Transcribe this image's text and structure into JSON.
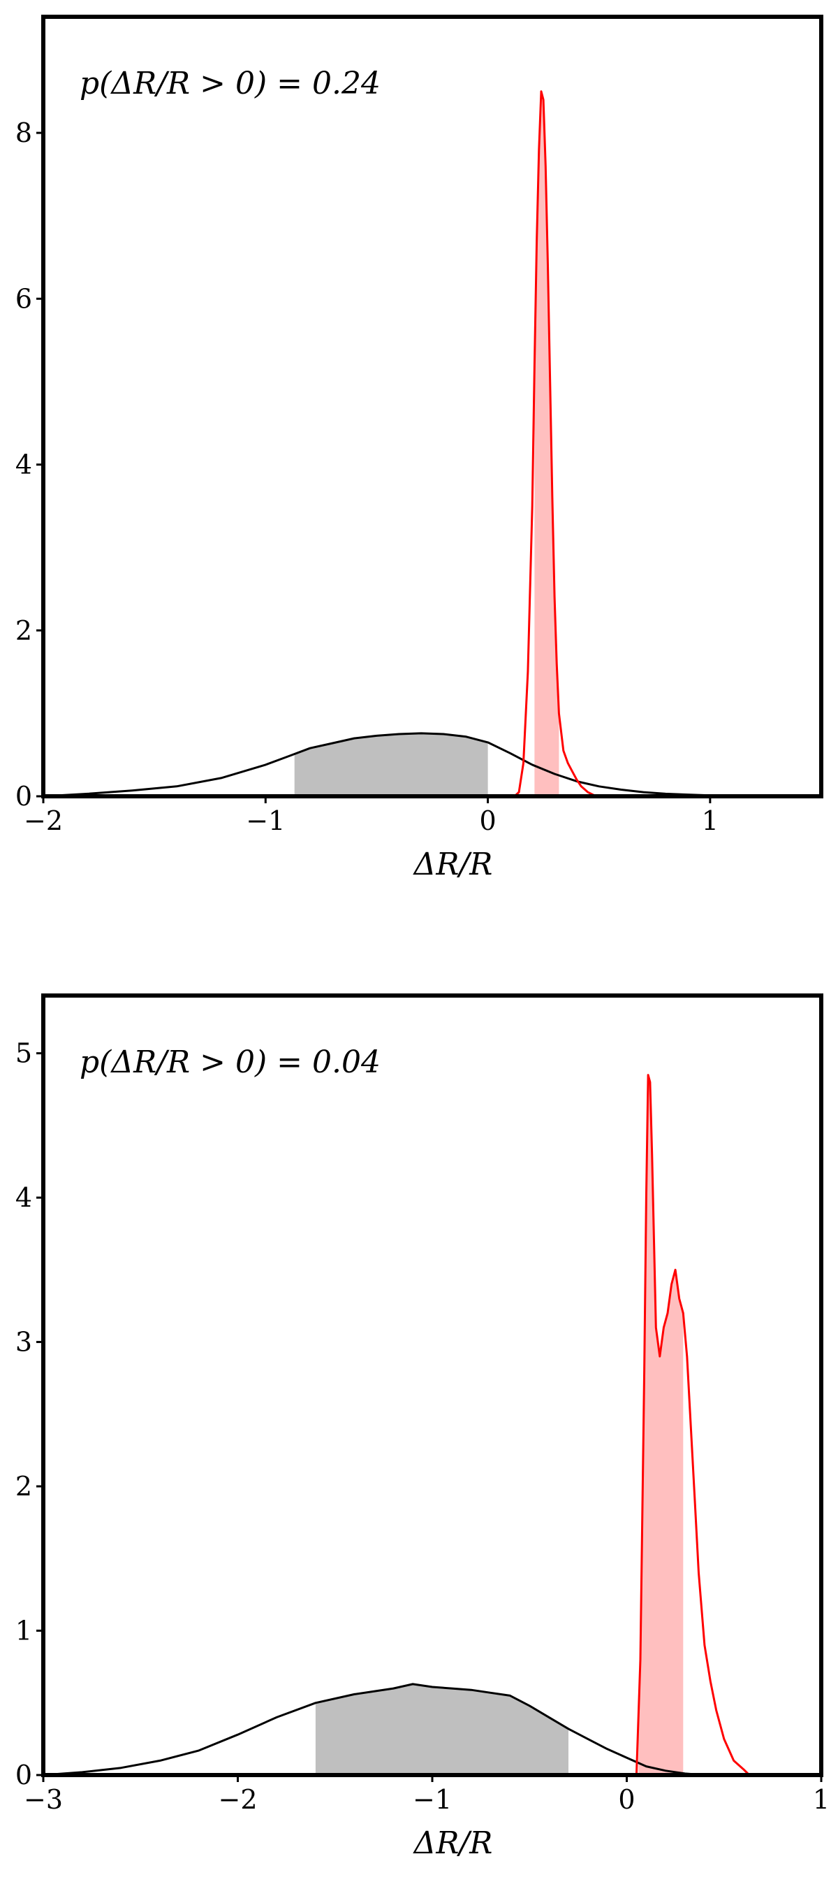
{
  "chart_data": [
    {
      "type": "line",
      "title": "",
      "xlabel": "ΔR/R",
      "ylabel": "",
      "xlim": [
        -2,
        1.5
      ],
      "ylim": [
        0,
        9.4
      ],
      "x_ticks": [
        "−2",
        "−1",
        "0",
        "1"
      ],
      "x_tick_values": [
        -2,
        -1,
        0,
        1
      ],
      "y_ticks": [
        "0",
        "2",
        "4",
        "6",
        "8"
      ],
      "y_tick_values": [
        0,
        2,
        4,
        6,
        8
      ],
      "annotation": "p(ΔR/R > 0) = 0.24",
      "grid": false,
      "series": [
        {
          "color": "#000000",
          "x": [
            -2.0,
            -1.8,
            -1.6,
            -1.4,
            -1.2,
            -1.0,
            -0.9,
            -0.8,
            -0.7,
            -0.6,
            -0.5,
            -0.4,
            -0.3,
            -0.2,
            -0.1,
            0.0,
            0.1,
            0.2,
            0.3,
            0.4,
            0.5,
            0.6,
            0.7,
            0.8,
            0.9,
            1.0,
            1.1,
            1.2
          ],
          "y": [
            0.0,
            0.03,
            0.07,
            0.12,
            0.22,
            0.38,
            0.48,
            0.58,
            0.64,
            0.7,
            0.73,
            0.75,
            0.76,
            0.75,
            0.72,
            0.65,
            0.52,
            0.38,
            0.27,
            0.18,
            0.12,
            0.08,
            0.05,
            0.03,
            0.02,
            0.01,
            0.005,
            0.0
          ],
          "fill_interval": [
            -0.87,
            0.0
          ],
          "fill_color": "#bfbfbf"
        },
        {
          "color": "#ff0000",
          "x": [
            0.12,
            0.14,
            0.16,
            0.18,
            0.2,
            0.21,
            0.22,
            0.23,
            0.24,
            0.25,
            0.26,
            0.27,
            0.28,
            0.29,
            0.3,
            0.31,
            0.32,
            0.34,
            0.36,
            0.38,
            0.4,
            0.42,
            0.45,
            0.48,
            0.5
          ],
          "y": [
            0.0,
            0.05,
            0.4,
            1.5,
            3.5,
            5.2,
            6.7,
            7.8,
            8.5,
            8.4,
            7.6,
            6.4,
            5.0,
            3.6,
            2.4,
            1.6,
            1.0,
            0.55,
            0.4,
            0.3,
            0.2,
            0.12,
            0.05,
            0.01,
            0.0
          ],
          "fill_interval": [
            0.21,
            0.32
          ],
          "fill_color": "#ffbfbf"
        }
      ]
    },
    {
      "type": "line",
      "title": "",
      "xlabel": "ΔR/R",
      "ylabel": "",
      "xlim": [
        -3,
        1
      ],
      "ylim": [
        0,
        5.4
      ],
      "x_ticks": [
        "−3",
        "−2",
        "−1",
        "0",
        "1"
      ],
      "x_tick_values": [
        -3,
        -2,
        -1,
        0,
        1
      ],
      "y_ticks": [
        "0",
        "1",
        "2",
        "3",
        "4",
        "5"
      ],
      "y_tick_values": [
        0,
        1,
        2,
        3,
        4,
        5
      ],
      "annotation": "p(ΔR/R > 0) = 0.04",
      "grid": false,
      "series": [
        {
          "color": "#000000",
          "x": [
            -3.0,
            -2.8,
            -2.6,
            -2.4,
            -2.2,
            -2.0,
            -1.8,
            -1.6,
            -1.4,
            -1.2,
            -1.1,
            -1.0,
            -0.9,
            -0.8,
            -0.7,
            -0.6,
            -0.5,
            -0.4,
            -0.3,
            -0.2,
            -0.1,
            0.0,
            0.1,
            0.2,
            0.3,
            0.4
          ],
          "y": [
            0.0,
            0.02,
            0.05,
            0.1,
            0.17,
            0.28,
            0.4,
            0.5,
            0.56,
            0.6,
            0.63,
            0.61,
            0.6,
            0.59,
            0.57,
            0.55,
            0.48,
            0.4,
            0.32,
            0.25,
            0.18,
            0.12,
            0.06,
            0.03,
            0.01,
            0.0
          ],
          "fill_interval": [
            -1.6,
            -0.3
          ],
          "fill_color": "#bfbfbf"
        },
        {
          "color": "#ff0000",
          "x": [
            0.05,
            0.07,
            0.09,
            0.1,
            0.11,
            0.12,
            0.13,
            0.14,
            0.15,
            0.17,
            0.19,
            0.21,
            0.23,
            0.25,
            0.27,
            0.29,
            0.31,
            0.33,
            0.35,
            0.37,
            0.4,
            0.43,
            0.46,
            0.5,
            0.55,
            0.6,
            0.63
          ],
          "y": [
            0.0,
            0.8,
            2.8,
            4.0,
            4.85,
            4.8,
            4.3,
            3.7,
            3.1,
            2.9,
            3.1,
            3.2,
            3.4,
            3.5,
            3.3,
            3.2,
            2.9,
            2.4,
            1.9,
            1.4,
            0.9,
            0.65,
            0.45,
            0.25,
            0.1,
            0.04,
            0.0
          ],
          "fill_interval": [
            0.06,
            0.29
          ],
          "fill_color": "#ffbfbf"
        }
      ]
    }
  ]
}
